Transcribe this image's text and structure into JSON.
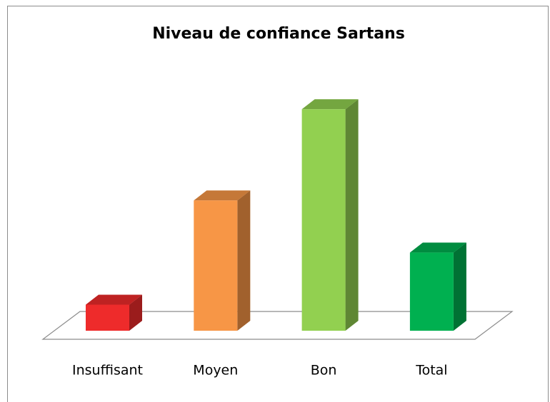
{
  "chart_data": {
    "type": "bar3d",
    "title": "Niveau de confiance Sartans",
    "categories": [
      "Insuffisant",
      "Moyen",
      "Bon",
      "Total"
    ],
    "values": [
      2,
      10,
      17,
      6
    ],
    "colors": [
      "#ee2b2b",
      "#f79646",
      "#92d050",
      "#00b050"
    ],
    "ylim": [
      0,
      18
    ]
  }
}
